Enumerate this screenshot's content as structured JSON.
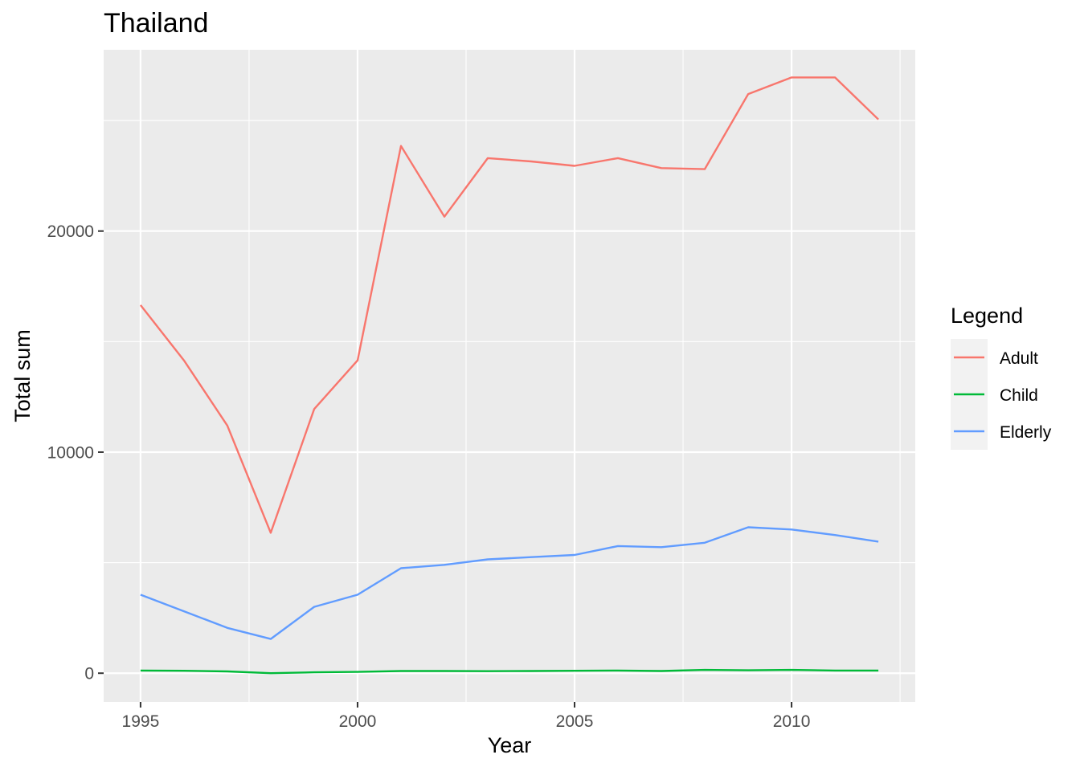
{
  "chart_data": {
    "type": "line",
    "title": "Thailand",
    "xlabel": "Year",
    "ylabel": "Total sum",
    "xlim": [
      1994.15,
      2012.85
    ],
    "ylim": [
      -1300,
      28200
    ],
    "x_ticks": [
      1995,
      2000,
      2005,
      2010
    ],
    "y_ticks": [
      0,
      10000,
      20000
    ],
    "grid": true,
    "legend_title": "Legend",
    "legend_position": "right",
    "x": [
      1995,
      1996,
      1997,
      1998,
      1999,
      2000,
      2001,
      2002,
      2003,
      2004,
      2005,
      2006,
      2007,
      2008,
      2009,
      2010,
      2011,
      2012
    ],
    "series": [
      {
        "name": "Adult",
        "color": "#F8766D",
        "values": [
          16650,
          14150,
          11200,
          6350,
          11950,
          14150,
          23850,
          20650,
          23300,
          23150,
          22950,
          23300,
          22850,
          22800,
          26200,
          26950,
          26950,
          25050
        ]
      },
      {
        "name": "Child",
        "color": "#00BA38",
        "values": [
          120,
          110,
          80,
          0,
          40,
          60,
          100,
          100,
          90,
          100,
          110,
          120,
          100,
          150,
          130,
          150,
          120,
          120
        ]
      },
      {
        "name": "Elderly",
        "color": "#619CFF",
        "values": [
          3550,
          2800,
          2050,
          1550,
          3000,
          3550,
          4750,
          4900,
          5150,
          5250,
          5350,
          5750,
          5700,
          5900,
          6600,
          6500,
          6250,
          5950
        ]
      }
    ]
  }
}
